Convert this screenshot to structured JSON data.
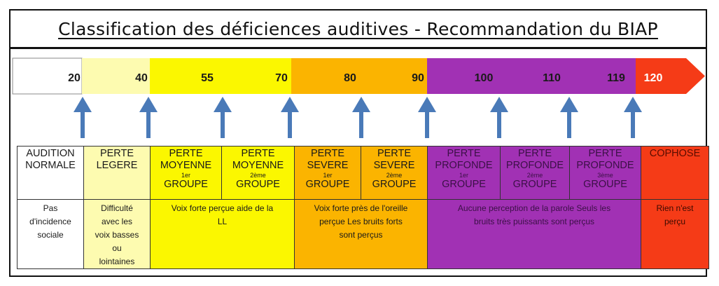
{
  "title": "Classification des déficiences auditives - Recommandation du BIAP",
  "scale": {
    "ticks": [
      "20",
      "40",
      "55",
      "70",
      "80",
      "90",
      "100",
      "110",
      "119",
      "120"
    ]
  },
  "colors": {
    "normal": "#ffffff",
    "legere": "#fdfbb0",
    "moyenne": "#fbf700",
    "severe": "#fbb400",
    "profonde": "#a131b4",
    "cophose": "#f53b17",
    "arrow": "#4a7ab8"
  },
  "categories": [
    {
      "header": [
        "AUDITION",
        "NORMALE"
      ],
      "description": [
        "Pas",
        "d'incidence",
        "sociale"
      ]
    },
    {
      "header": [
        "PERTE",
        "LEGERE"
      ],
      "description": [
        "Difficulté",
        "avec les",
        "voix basses",
        "ou",
        "lointaines"
      ]
    },
    {
      "header": [
        "PERTE",
        "MOYENNE",
        "1er",
        "GROUPE"
      ]
    },
    {
      "header": [
        "PERTE",
        "MOYENNE",
        "2ème",
        "GROUPE"
      ]
    },
    {
      "header": [
        "PERTE",
        "SEVERE",
        "1er",
        "GROUPE"
      ]
    },
    {
      "header": [
        "PERTE",
        "SEVERE",
        "2ème",
        "GROUPE"
      ]
    },
    {
      "header": [
        "PERTE",
        "PROFONDE",
        "1er",
        "GROUPE"
      ]
    },
    {
      "header": [
        "PERTE",
        "PROFONDE",
        "2ème",
        "GROUPE"
      ]
    },
    {
      "header": [
        "PERTE",
        "PROFONDE",
        "3ème",
        "GROUPE"
      ]
    },
    {
      "header": [
        "COPHOSE"
      ],
      "description": [
        "Rien n'est",
        "perçu"
      ]
    }
  ],
  "group_descriptions": {
    "moyenne": [
      "Voix forte perçue aide de la",
      "LL"
    ],
    "severe": [
      "Voix forte près de l'oreille",
      "perçue Les bruits forts",
      "sont perçus"
    ],
    "profonde": [
      "Aucune perception de la parole Seuls les",
      "bruits très puissants sont perçus"
    ]
  }
}
